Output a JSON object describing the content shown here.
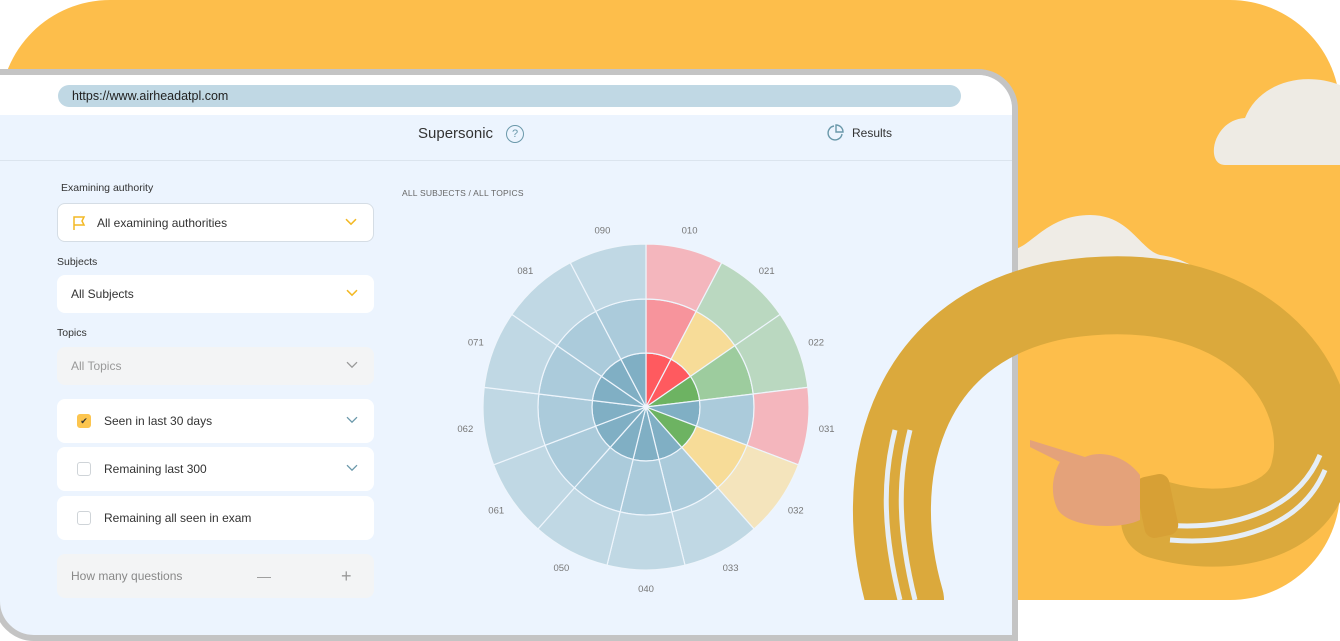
{
  "browser": {
    "url": "https://www.airheadatpl.com"
  },
  "header": {
    "title": "Supersonic",
    "help_icon": "question-circle-icon",
    "results_label": "Results",
    "results_icon": "pie-chart-icon"
  },
  "filters": {
    "authority_label": "Examining authority",
    "authority_value": "All examining authorities",
    "authority_icon": "flag-icon",
    "subjects_label": "Subjects",
    "subjects_value": "All Subjects",
    "topics_label": "Topics",
    "topics_value": "All Topics",
    "options": [
      {
        "label": "Seen in last 30 days",
        "checked": true,
        "has_dropdown": true
      },
      {
        "label": "Remaining last 300",
        "checked": false,
        "has_dropdown": true
      },
      {
        "label": "Remaining all seen in exam",
        "checked": false,
        "has_dropdown": false
      }
    ],
    "questions_placeholder": "How many questions",
    "minus": "—",
    "plus": "+"
  },
  "breadcrumb": "ALL SUBJECTS / ALL TOPICS",
  "colors": {
    "accent": "#fdbe4b",
    "blue_outer": "#c0d8e4",
    "blue_middle": "#abcbdb",
    "blue_inner": "#80afc4",
    "pink_outer": "#f4b6bd",
    "pink_middle": "#f7949c",
    "red_inner": "#ff5a5f",
    "green_outer": "#bad8c0",
    "green_middle": "#9dcc9e",
    "green_inner": "#6db362",
    "yellow_outer": "#f4e4bc",
    "yellow_middle": "#f7dc98"
  },
  "chart_data": {
    "type": "polar-sunburst",
    "categories": [
      "010",
      "021",
      "022",
      "031",
      "032",
      "033",
      "040",
      "050",
      "061",
      "062",
      "071",
      "081",
      "090"
    ],
    "rings": [
      "inner",
      "middle",
      "outer"
    ],
    "status": [
      [
        "red",
        "pink",
        "pink"
      ],
      [
        "red",
        "yellow",
        "green"
      ],
      [
        "green",
        "green",
        "green"
      ],
      [
        "blue",
        "blue",
        "pink"
      ],
      [
        "green",
        "yellow",
        "yellow"
      ],
      [
        "blue",
        "blue",
        "blue"
      ],
      [
        "blue",
        "blue",
        "blue"
      ],
      [
        "blue",
        "blue",
        "blue"
      ],
      [
        "blue",
        "blue",
        "blue"
      ],
      [
        "blue",
        "blue",
        "blue"
      ],
      [
        "blue",
        "blue",
        "blue"
      ],
      [
        "blue",
        "blue",
        "blue"
      ],
      [
        "blue",
        "blue",
        "blue"
      ]
    ]
  }
}
